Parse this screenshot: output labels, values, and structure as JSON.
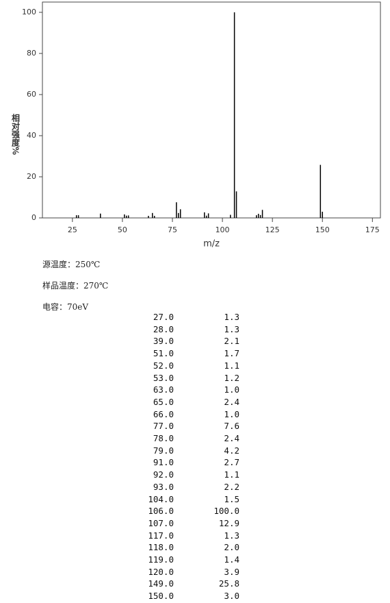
{
  "chart_data": {
    "type": "bar",
    "y_label": "相对强度%",
    "x_label": "m/z",
    "x": [
      27,
      28,
      39,
      51,
      52,
      53,
      63,
      65,
      66,
      77,
      78,
      79,
      91,
      92,
      93,
      104,
      106,
      107,
      117,
      118,
      119,
      120,
      149,
      150
    ],
    "values": [
      1.3,
      1.3,
      2.1,
      1.7,
      1.1,
      1.2,
      1.0,
      2.4,
      1.0,
      7.6,
      2.4,
      4.2,
      2.7,
      1.1,
      2.2,
      1.5,
      100.0,
      12.9,
      1.3,
      2.0,
      1.4,
      3.9,
      25.8,
      3.0
    ],
    "color": "#000000",
    "xlim": [
      10,
      179
    ],
    "xticks": [
      25,
      50,
      75,
      100,
      125,
      150,
      175
    ],
    "ylim": [
      0,
      105
    ],
    "yticks": [
      0,
      20,
      40,
      60,
      80,
      100
    ]
  },
  "conditions": [
    "源温度：250℃",
    "样品温度：270℃",
    "电容：70eV"
  ],
  "peak_table": {
    "rows": [
      [
        "27.0",
        "1.3"
      ],
      [
        "28.0",
        "1.3"
      ],
      [
        "39.0",
        "2.1"
      ],
      [
        "51.0",
        "1.7"
      ],
      [
        "52.0",
        "1.1"
      ],
      [
        "53.0",
        "1.2"
      ],
      [
        "63.0",
        "1.0"
      ],
      [
        "65.0",
        "2.4"
      ],
      [
        "66.0",
        "1.0"
      ],
      [
        "77.0",
        "7.6"
      ],
      [
        "78.0",
        "2.4"
      ],
      [
        "79.0",
        "4.2"
      ],
      [
        "91.0",
        "2.7"
      ],
      [
        "92.0",
        "1.1"
      ],
      [
        "93.0",
        "2.2"
      ],
      [
        "104.0",
        "1.5"
      ],
      [
        "106.0",
        "100.0"
      ],
      [
        "107.0",
        "12.9"
      ],
      [
        "117.0",
        "1.3"
      ],
      [
        "118.0",
        "2.0"
      ],
      [
        "119.0",
        "1.4"
      ],
      [
        "120.0",
        "3.9"
      ],
      [
        "149.0",
        "25.8"
      ],
      [
        "150.0",
        "3.0"
      ]
    ]
  }
}
